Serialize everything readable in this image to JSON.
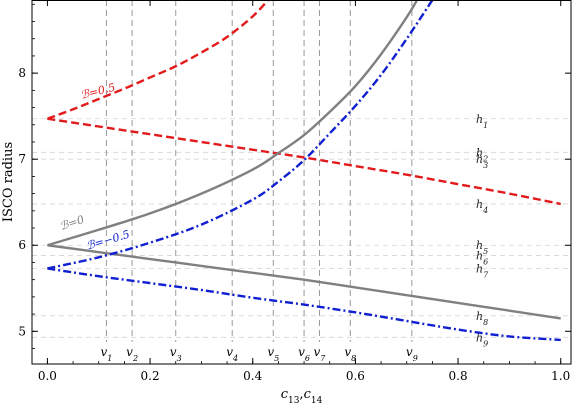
{
  "chart_data": {
    "type": "line",
    "xlabel": "c13,c14",
    "ylabel": "ISCO radius",
    "xlim": [
      -0.03,
      1.02
    ],
    "ylim": [
      4.62,
      8.85
    ],
    "xticks": [
      0.0,
      0.2,
      0.4,
      0.6,
      0.8,
      1.0
    ],
    "xtick_labels": [
      "0.0",
      "0.2",
      "0.4",
      "0.6",
      "0.8",
      "1.0"
    ],
    "yticks": [
      5,
      6,
      7,
      8
    ],
    "ytick_labels": [
      "5",
      "6",
      "7",
      "8"
    ],
    "grid": false,
    "series": [
      {
        "name": "B=0.5",
        "color": "#e31a1c",
        "dash": "8,4",
        "curve_label": "ℬ=0.5",
        "x": [
          0.0,
          0.05,
          0.1,
          0.15,
          0.2,
          0.25,
          0.3,
          0.35,
          0.4,
          0.43
        ],
        "y": [
          7.47,
          7.58,
          7.7,
          7.82,
          7.95,
          8.08,
          8.24,
          8.42,
          8.66,
          8.85
        ]
      },
      {
        "name": "B=0.5 (lower branch)",
        "color": "#e31a1c",
        "dash": "8,4",
        "x": [
          0.0,
          0.1,
          0.2,
          0.3,
          0.4,
          0.5,
          0.6,
          0.7,
          0.8,
          0.9,
          1.0
        ],
        "y": [
          7.47,
          7.38,
          7.29,
          7.2,
          7.11,
          7.02,
          6.92,
          6.82,
          6.71,
          6.6,
          6.48
        ]
      },
      {
        "name": "B=0",
        "color": "#808080",
        "dash": "",
        "curve_label": "ℬ=0",
        "x": [
          0.0,
          0.1,
          0.2,
          0.3,
          0.4,
          0.45,
          0.5,
          0.55,
          0.6,
          0.65,
          0.7,
          0.72
        ],
        "y": [
          6.0,
          6.18,
          6.37,
          6.6,
          6.88,
          7.07,
          7.28,
          7.55,
          7.85,
          8.22,
          8.65,
          8.85
        ]
      },
      {
        "name": "B=0 (lower branch)",
        "color": "#808080",
        "dash": "",
        "x": [
          0.0,
          0.1,
          0.2,
          0.3,
          0.4,
          0.5,
          0.6,
          0.7,
          0.8,
          0.9,
          1.0
        ],
        "y": [
          6.0,
          5.92,
          5.84,
          5.76,
          5.68,
          5.6,
          5.51,
          5.42,
          5.33,
          5.24,
          5.15
        ]
      },
      {
        "name": "B=-0.5",
        "color": "#1020d0",
        "dash": "8,3,2,3",
        "curve_label": "ℬ=−0.5",
        "x": [
          0.0,
          0.1,
          0.2,
          0.3,
          0.4,
          0.45,
          0.5,
          0.55,
          0.6,
          0.65,
          0.7,
          0.75
        ],
        "y": [
          5.73,
          5.86,
          6.03,
          6.24,
          6.53,
          6.74,
          6.99,
          7.3,
          7.62,
          7.98,
          8.4,
          8.85
        ]
      },
      {
        "name": "B=-0.5 (lower branch)",
        "color": "#1020d0",
        "dash": "8,3,2,3",
        "x": [
          0.0,
          0.1,
          0.2,
          0.3,
          0.4,
          0.5,
          0.6,
          0.7,
          0.8,
          0.9,
          1.0
        ],
        "y": [
          5.73,
          5.64,
          5.56,
          5.48,
          5.39,
          5.31,
          5.22,
          5.12,
          5.02,
          4.94,
          4.9
        ]
      }
    ],
    "vlines": [
      {
        "label": "v1",
        "x": 0.115
      },
      {
        "label": "v2",
        "x": 0.165
      },
      {
        "label": "v3",
        "x": 0.25
      },
      {
        "label": "v4",
        "x": 0.36
      },
      {
        "label": "v5",
        "x": 0.44
      },
      {
        "label": "v6",
        "x": 0.5
      },
      {
        "label": "v7",
        "x": 0.53
      },
      {
        "label": "v8",
        "x": 0.59
      },
      {
        "label": "v9",
        "x": 0.71
      }
    ],
    "hlines": [
      {
        "label": "h1",
        "y": 7.47
      },
      {
        "label": "h2",
        "y": 7.08
      },
      {
        "label": "h3",
        "y": 7.0
      },
      {
        "label": "h4",
        "y": 6.48
      },
      {
        "label": "h5",
        "y": 6.0
      },
      {
        "label": "h6",
        "y": 5.88
      },
      {
        "label": "h7",
        "y": 5.73
      },
      {
        "label": "h8",
        "y": 5.18
      },
      {
        "label": "h9",
        "y": 4.93
      }
    ]
  }
}
